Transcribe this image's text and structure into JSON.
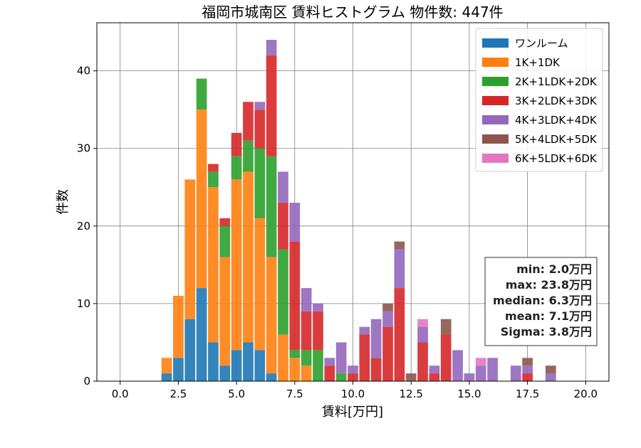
{
  "chart_data": {
    "type": "bar",
    "stacked": true,
    "title": "福岡市城南区 賃料ヒストグラム 物件数: 447件",
    "xlabel": "賃料[万円]",
    "ylabel": "件数",
    "xlim": [
      -1.0,
      21.0
    ],
    "ylim": [
      0,
      46.2
    ],
    "xticks": [
      0.0,
      2.5,
      5.0,
      7.5,
      10.0,
      12.5,
      15.0,
      17.5,
      20.0
    ],
    "xtick_labels": [
      "0.0",
      "2.5",
      "5.0",
      "7.5",
      "10.0",
      "12.5",
      "15.0",
      "17.5",
      "20.0"
    ],
    "yticks": [
      0,
      10,
      20,
      30,
      40
    ],
    "ytick_labels": [
      "0",
      "10",
      "20",
      "30",
      "40"
    ],
    "grid": true,
    "legend_position": "top-right",
    "bin_width": 0.5,
    "categories": [
      2.0,
      2.5,
      3.0,
      3.5,
      4.0,
      4.5,
      5.0,
      5.5,
      6.0,
      6.5,
      7.0,
      7.5,
      8.0,
      8.5,
      9.0,
      9.5,
      10.0,
      10.5,
      11.0,
      11.5,
      12.0,
      12.5,
      13.0,
      13.5,
      14.0,
      14.5,
      15.0,
      15.5,
      16.0,
      16.5,
      17.0,
      17.5,
      18.0,
      18.5
    ],
    "series": [
      {
        "name": "ワンルーム",
        "color": "#1f77b4",
        "values": [
          1,
          3,
          8,
          12,
          5,
          2,
          4,
          5,
          4,
          1,
          0,
          0,
          0,
          0,
          0,
          0,
          0,
          0,
          0,
          0,
          0,
          0,
          0,
          0,
          0,
          0,
          0,
          0,
          0,
          0,
          0,
          0,
          0,
          0
        ]
      },
      {
        "name": "1K+1DK",
        "color": "#ff7f0e",
        "values": [
          2,
          8,
          18,
          23,
          20,
          14,
          22,
          22,
          17,
          15,
          6,
          3,
          2,
          0,
          0,
          0,
          0,
          0,
          0,
          0,
          0,
          0,
          0,
          0,
          0,
          0,
          0,
          0,
          0,
          0,
          0,
          0,
          0,
          0
        ]
      },
      {
        "name": "2K+1LDK+2DK",
        "color": "#2ca02c",
        "values": [
          0,
          0,
          0,
          4,
          2,
          4,
          3,
          4,
          9,
          13,
          11,
          1,
          2,
          4,
          0,
          1,
          0,
          0,
          0,
          0,
          0,
          0,
          0,
          0,
          0,
          0,
          0,
          0,
          0,
          0,
          0,
          0,
          0,
          0
        ]
      },
      {
        "name": "3K+2LDK+3DK",
        "color": "#d62728",
        "values": [
          0,
          0,
          0,
          0,
          1,
          1,
          3,
          5,
          5,
          13,
          6,
          14,
          5,
          5,
          2,
          0,
          1,
          6,
          3,
          7,
          12,
          0,
          5,
          1,
          6,
          0,
          0,
          0,
          0,
          0,
          0,
          1,
          0,
          0
        ]
      },
      {
        "name": "4K+3LDK+4DK",
        "color": "#9467bd",
        "values": [
          0,
          0,
          0,
          0,
          0,
          0,
          0,
          0,
          1,
          2,
          4,
          5,
          3,
          1,
          1,
          4,
          1,
          1,
          5,
          2,
          5,
          0,
          2,
          1,
          0,
          4,
          1,
          2,
          3,
          0,
          2,
          1,
          0,
          1
        ]
      },
      {
        "name": "5K+4LDK+5DK",
        "color": "#8c564b",
        "values": [
          0,
          0,
          0,
          0,
          0,
          0,
          0,
          0,
          0,
          0,
          0,
          0,
          0,
          0,
          0,
          0,
          0,
          0,
          0,
          1,
          1,
          1,
          0,
          0,
          2,
          0,
          0,
          0,
          0,
          0,
          0,
          1,
          0,
          1
        ]
      },
      {
        "name": "6K+5LDK+6DK",
        "color": "#e377c2",
        "values": [
          0,
          0,
          0,
          0,
          0,
          0,
          0,
          0,
          0,
          0,
          0,
          0,
          0,
          0,
          0,
          0,
          0,
          0,
          0,
          0,
          0,
          0,
          1,
          0,
          0,
          0,
          0,
          1,
          0,
          0,
          0,
          0,
          0,
          0
        ]
      }
    ],
    "stats": [
      "min: 2.0万円",
      "max: 23.8万円",
      "median: 6.3万円",
      "mean: 7.1万円",
      "Sigma: 3.8万円"
    ]
  }
}
